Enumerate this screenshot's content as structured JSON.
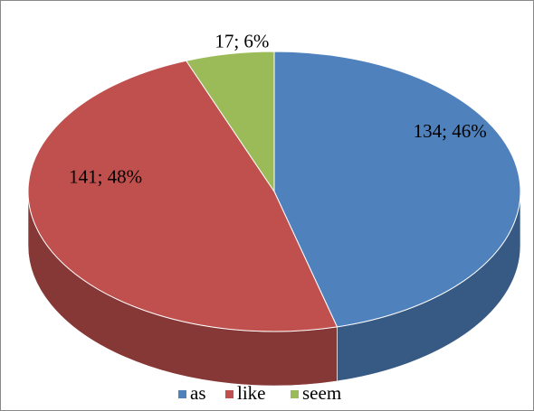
{
  "chart_data": {
    "type": "pie",
    "categories": [
      "as",
      "like",
      "seem"
    ],
    "values": [
      134,
      141,
      17
    ],
    "value_labels": [
      "134; 46%",
      "141; 48%",
      "17; 6%"
    ],
    "colors": [
      "#4f81bd",
      "#c0504d",
      "#9bbb59"
    ],
    "legend": "bottom"
  }
}
